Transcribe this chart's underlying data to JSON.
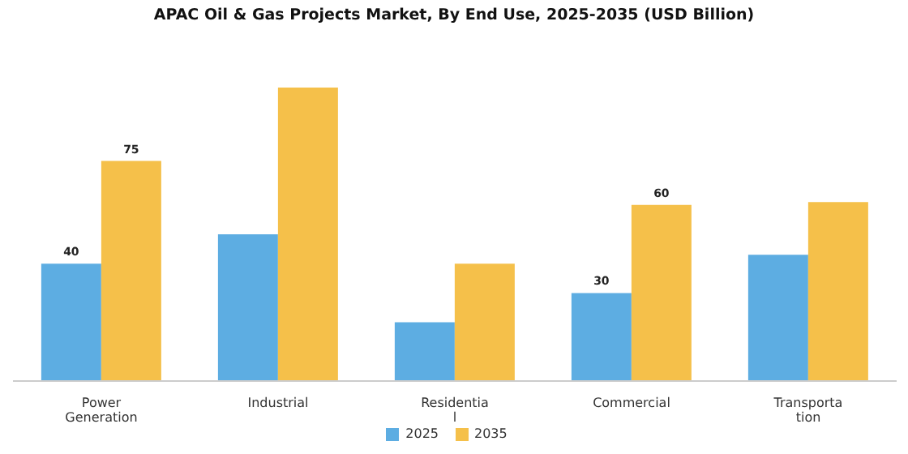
{
  "chart_data": {
    "type": "bar",
    "title": "APAC Oil & Gas Projects Market, By End Use, 2025-2035 (USD Billion)",
    "categories": [
      "Power\nGeneration",
      "Industrial",
      "Residentia\nl",
      "Commercial",
      "Transporta\ntion"
    ],
    "series": [
      {
        "name": "2025",
        "color": "#5dade2",
        "values": [
          40,
          50,
          20,
          30,
          43
        ],
        "value_labels": [
          "40",
          null,
          null,
          "30",
          null
        ]
      },
      {
        "name": "2035",
        "color": "#f5c04a",
        "values": [
          75,
          100,
          40,
          60,
          61
        ],
        "value_labels": [
          "75",
          null,
          null,
          "60",
          null
        ]
      }
    ],
    "legend": "bottom"
  }
}
